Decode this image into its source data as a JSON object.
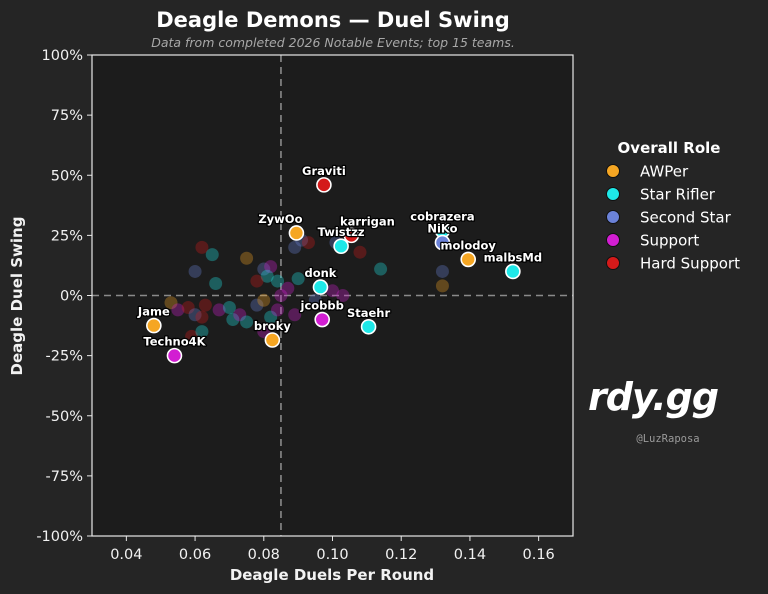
{
  "chart_data": {
    "type": "scatter",
    "title": "Deagle Demons — Duel Swing",
    "subtitle": "Data from completed 2026 Notable Events; top 15 teams.",
    "xlabel": "Deagle Duels Per Round",
    "ylabel": "Deagle Duel Swing",
    "xlim": [
      0.03,
      0.17
    ],
    "ylim": [
      -100,
      100
    ],
    "xticks": [
      0.04,
      0.06,
      0.08,
      0.1,
      0.12,
      0.14,
      0.16
    ],
    "xtick_labels": [
      "0.04",
      "0.06",
      "0.08",
      "0.10",
      "0.12",
      "0.14",
      "0.16"
    ],
    "yticks": [
      100,
      75,
      50,
      25,
      0,
      -25,
      -50,
      -75,
      -100
    ],
    "ytick_labels": [
      "100%",
      "75%",
      "50%",
      "25%",
      "0%",
      "-25%",
      "-50%",
      "-75%",
      "-100%"
    ],
    "reference_lines": {
      "x": 0.085,
      "y": 0
    },
    "grid": false,
    "legend": {
      "title": "Overall Role",
      "placement": "right",
      "entries": [
        {
          "role": "AWPer",
          "color": "#f5a623"
        },
        {
          "role": "Star Rifler",
          "color": "#1ee8e8"
        },
        {
          "role": "Second Star",
          "color": "#6b82d8"
        },
        {
          "role": "Support",
          "color": "#d21ed2"
        },
        {
          "role": "Hard Support",
          "color": "#d41a1a"
        }
      ]
    },
    "highlighted_players": [
      {
        "name": "Graviti",
        "x": 0.0975,
        "y": 46,
        "role": "Hard Support"
      },
      {
        "name": "ZywOo",
        "x": 0.0895,
        "y": 26,
        "role": "AWPer"
      },
      {
        "name": "karrigan",
        "x": 0.1055,
        "y": 25,
        "role": "Hard Support"
      },
      {
        "name": "Twistzz",
        "x": 0.1025,
        "y": 20.5,
        "role": "Star Rifler"
      },
      {
        "name": "cobrazera",
        "x": 0.132,
        "y": 27,
        "role": "Star Rifler"
      },
      {
        "name": "NiKo",
        "x": 0.132,
        "y": 22,
        "role": "Second Star"
      },
      {
        "name": "molodoy",
        "x": 0.1395,
        "y": 15,
        "role": "AWPer"
      },
      {
        "name": "malbsMd",
        "x": 0.1525,
        "y": 10,
        "role": "Star Rifler"
      },
      {
        "name": "donk",
        "x": 0.0965,
        "y": 3.5,
        "role": "Star Rifler"
      },
      {
        "name": "jcobbb",
        "x": 0.097,
        "y": -10,
        "role": "Support"
      },
      {
        "name": "Staehr",
        "x": 0.1105,
        "y": -13,
        "role": "Star Rifler"
      },
      {
        "name": "Jame",
        "x": 0.048,
        "y": -12.5,
        "role": "AWPer"
      },
      {
        "name": "broky",
        "x": 0.0825,
        "y": -18.5,
        "role": "AWPer"
      },
      {
        "name": "Techno4K",
        "x": 0.054,
        "y": -25,
        "role": "Support"
      }
    ],
    "other_players": [
      {
        "x": 0.062,
        "y": 20,
        "role": "Hard Support"
      },
      {
        "x": 0.065,
        "y": 17,
        "role": "Star Rifler"
      },
      {
        "x": 0.06,
        "y": 10,
        "role": "Second Star"
      },
      {
        "x": 0.066,
        "y": 5,
        "role": "Star Rifler"
      },
      {
        "x": 0.075,
        "y": 15.5,
        "role": "AWPer"
      },
      {
        "x": 0.08,
        "y": 11,
        "role": "Second Star"
      },
      {
        "x": 0.082,
        "y": 12,
        "role": "Support"
      },
      {
        "x": 0.081,
        "y": 8,
        "role": "Star Rifler"
      },
      {
        "x": 0.078,
        "y": 6,
        "role": "Hard Support"
      },
      {
        "x": 0.084,
        "y": 6,
        "role": "Star Rifler"
      },
      {
        "x": 0.089,
        "y": 20,
        "role": "Second Star"
      },
      {
        "x": 0.091,
        "y": 23,
        "role": "Second Star"
      },
      {
        "x": 0.093,
        "y": 22,
        "role": "Hard Support"
      },
      {
        "x": 0.09,
        "y": 7,
        "role": "Star Rifler"
      },
      {
        "x": 0.087,
        "y": 3,
        "role": "Support"
      },
      {
        "x": 0.085,
        "y": 0,
        "role": "Support"
      },
      {
        "x": 0.101,
        "y": 22,
        "role": "Second Star"
      },
      {
        "x": 0.108,
        "y": 18,
        "role": "Hard Support"
      },
      {
        "x": 0.114,
        "y": 11,
        "role": "Star Rifler"
      },
      {
        "x": 0.1,
        "y": 2,
        "role": "Support"
      },
      {
        "x": 0.103,
        "y": 0,
        "role": "Support"
      },
      {
        "x": 0.095,
        "y": -2,
        "role": "Second Star"
      },
      {
        "x": 0.132,
        "y": 10,
        "role": "Second Star"
      },
      {
        "x": 0.132,
        "y": 4,
        "role": "AWPer"
      },
      {
        "x": 0.053,
        "y": -3,
        "role": "AWPer"
      },
      {
        "x": 0.055,
        "y": -6,
        "role": "Support"
      },
      {
        "x": 0.058,
        "y": -5,
        "role": "Hard Support"
      },
      {
        "x": 0.06,
        "y": -8,
        "role": "Second Star"
      },
      {
        "x": 0.062,
        "y": -9,
        "role": "Hard Support"
      },
      {
        "x": 0.063,
        "y": -4,
        "role": "Hard Support"
      },
      {
        "x": 0.067,
        "y": -6,
        "role": "Support"
      },
      {
        "x": 0.07,
        "y": -5,
        "role": "Star Rifler"
      },
      {
        "x": 0.071,
        "y": -10,
        "role": "Star Rifler"
      },
      {
        "x": 0.073,
        "y": -8,
        "role": "Support"
      },
      {
        "x": 0.075,
        "y": -11,
        "role": "Star Rifler"
      },
      {
        "x": 0.078,
        "y": -4,
        "role": "Second Star"
      },
      {
        "x": 0.08,
        "y": -2,
        "role": "AWPer"
      },
      {
        "x": 0.082,
        "y": -9,
        "role": "Star Rifler"
      },
      {
        "x": 0.084,
        "y": -6,
        "role": "Support"
      },
      {
        "x": 0.059,
        "y": -17,
        "role": "Hard Support"
      },
      {
        "x": 0.062,
        "y": -15,
        "role": "Star Rifler"
      },
      {
        "x": 0.08,
        "y": -15,
        "role": "Support"
      },
      {
        "x": 0.089,
        "y": -8,
        "role": "Support"
      }
    ]
  },
  "brand": {
    "logo_text": "rdy.gg",
    "credit": "@LuzRaposa"
  }
}
